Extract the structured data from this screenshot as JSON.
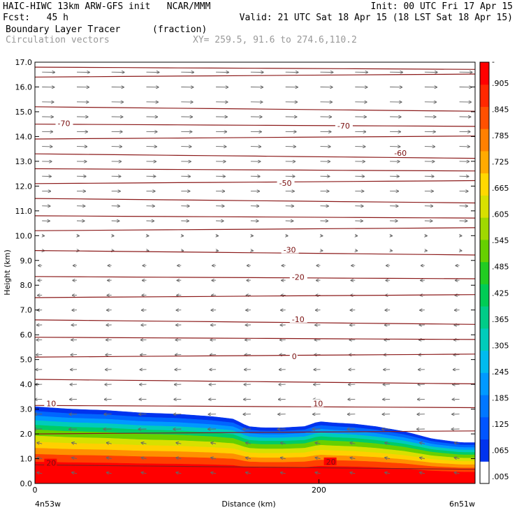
{
  "header": {
    "line1_left": "HAIC-HIWC 13km ARW-GFS init   NCAR/MMM",
    "line1_right": "Init: 00 UTC Fri 17 Apr 15",
    "line2_left": "Fcst:   45 h",
    "line2_right": "Valid: 21 UTC Sat 18 Apr 15 (18 LST Sat 18 Apr 15)",
    "field_name": "Boundary Layer Tracer",
    "field_units": "(fraction)",
    "vector_label": "Circulation vectors",
    "xsec_coords": "XY= 259.5, 91.6 to 274.6,110.2"
  },
  "axes": {
    "ylabel": "Height (km)",
    "xlabel": "Distance (km)",
    "x_start_label": "4n53w",
    "x_end_label": "6n51w"
  },
  "colorbar": {
    "colors": [
      "#ffffff",
      "#0033ee",
      "#0055ff",
      "#0077ff",
      "#0099ff",
      "#00bbee",
      "#00ccbb",
      "#00cc88",
      "#00cc55",
      "#22cc22",
      "#66d000",
      "#a0d800",
      "#d8e000",
      "#ffd800",
      "#ffaa00",
      "#ff8000",
      "#ff5000",
      "#ff2800",
      "#ff0000"
    ],
    "labels": [
      ".005",
      ".065",
      ".125",
      ".185",
      ".245",
      ".305",
      ".365",
      ".425",
      ".485",
      ".545",
      ".605",
      ".665",
      ".725",
      ".785",
      ".845",
      ".905",
      "-"
    ]
  },
  "chart_data": {
    "type": "heatmap",
    "title": "Boundary Layer Tracer",
    "xlabel": "Distance (km)",
    "ylabel": "Height (km)",
    "xlim": [
      0,
      310
    ],
    "ylim": [
      0,
      17
    ],
    "x_ticks": [
      0,
      200
    ],
    "y_ticks": [
      0.0,
      1.0,
      2.0,
      3.0,
      4.0,
      5.0,
      6.0,
      7.0,
      8.0,
      9.0,
      10.0,
      11.0,
      12.0,
      13.0,
      14.0,
      15.0,
      16.0,
      17.0
    ],
    "y_tick_labels": [
      "0.0",
      "1.0",
      "2.0",
      "3.0",
      "4.0",
      "5.0",
      "6.0",
      "7.0",
      "8.0",
      "9.0",
      "10.0",
      "11.0",
      "12.0",
      "13.0",
      "14.0",
      "15.0",
      "16.0",
      "17.0"
    ],
    "tracer_top_km": {
      "x": [
        0,
        25,
        50,
        75,
        100,
        125,
        140,
        150,
        160,
        175,
        190,
        200,
        210,
        225,
        240,
        260,
        280,
        300,
        310
      ],
      "y": [
        3.1,
        3.0,
        2.95,
        2.85,
        2.8,
        2.7,
        2.6,
        2.3,
        2.25,
        2.25,
        2.3,
        2.5,
        2.45,
        2.4,
        2.3,
        2.1,
        1.8,
        1.65,
        1.65
      ]
    },
    "temperature_contours_C": [
      {
        "value": 20,
        "label": "20",
        "label_positions_km": [
          [
            8,
            0.8
          ],
          [
            205,
            0.85
          ]
        ]
      },
      {
        "value": 10,
        "label": "10",
        "label_positions_km": [
          [
            8,
            3.2
          ],
          [
            196,
            3.2
          ]
        ]
      },
      {
        "value": 0,
        "label": "0",
        "label_positions_km": [
          [
            181,
            5.1
          ]
        ]
      },
      {
        "value": -10,
        "label": "-10",
        "label_positions_km": [
          [
            181,
            6.6
          ]
        ]
      },
      {
        "value": -20,
        "label": "-20",
        "label_positions_km": [
          [
            181,
            8.3
          ]
        ]
      },
      {
        "value": -30,
        "label": "-30",
        "label_positions_km": [
          [
            175,
            9.4
          ]
        ]
      },
      {
        "value": -50,
        "label": "-50",
        "label_positions_km": [
          [
            172,
            12.1
          ]
        ]
      },
      {
        "value": -60,
        "label": "-60",
        "label_positions_km": [
          [
            253,
            13.3
          ]
        ]
      },
      {
        "value": -70,
        "label": "-70",
        "label_positions_km": [
          [
            16,
            14.5
          ],
          [
            213,
            14.4
          ]
        ]
      }
    ],
    "wind_vectors": "circulation vectors; westerly aloft (above ~10 km), easterly between ~2 and 9 km"
  }
}
